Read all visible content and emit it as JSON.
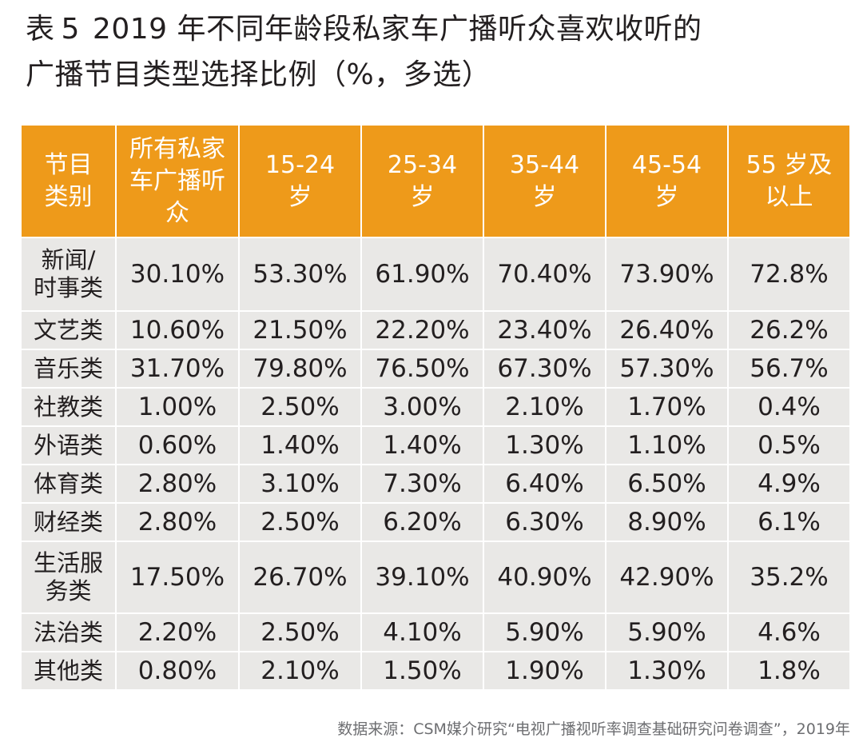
{
  "title": {
    "line1_a": "表",
    "line1_num": "5",
    "line1_b": "2019 年不同年龄段私家车广播听众喜欢收听的",
    "line2": "广播节目类型选择比例（%，多选）"
  },
  "table": {
    "headers": [
      [
        "节目",
        "类别"
      ],
      [
        "所有私家",
        "车广播听",
        "众"
      ],
      [
        "15-24",
        "岁"
      ],
      [
        "25-34",
        "岁"
      ],
      [
        "35-44",
        "岁"
      ],
      [
        "45-54",
        "岁"
      ],
      [
        "55 岁及",
        "以上"
      ]
    ],
    "rows": [
      {
        "category": [
          "新闻/",
          "时事类"
        ],
        "values": [
          "30.10%",
          "53.30%",
          "61.90%",
          "70.40%",
          "73.90%",
          "72.8%"
        ]
      },
      {
        "category": [
          "文艺类"
        ],
        "values": [
          "10.60%",
          "21.50%",
          "22.20%",
          "23.40%",
          "26.40%",
          "26.2%"
        ]
      },
      {
        "category": [
          "音乐类"
        ],
        "values": [
          "31.70%",
          "79.80%",
          "76.50%",
          "67.30%",
          "57.30%",
          "56.7%"
        ]
      },
      {
        "category": [
          "社教类"
        ],
        "values": [
          "1.00%",
          "2.50%",
          "3.00%",
          "2.10%",
          "1.70%",
          "0.4%"
        ]
      },
      {
        "category": [
          "外语类"
        ],
        "values": [
          "0.60%",
          "1.40%",
          "1.40%",
          "1.30%",
          "1.10%",
          "0.5%"
        ]
      },
      {
        "category": [
          "体育类"
        ],
        "values": [
          "2.80%",
          "3.10%",
          "7.30%",
          "6.40%",
          "6.50%",
          "4.9%"
        ]
      },
      {
        "category": [
          "财经类"
        ],
        "values": [
          "2.80%",
          "2.50%",
          "6.20%",
          "6.30%",
          "8.90%",
          "6.1%"
        ]
      },
      {
        "category": [
          "生活服",
          "务类"
        ],
        "values": [
          "17.50%",
          "26.70%",
          "39.10%",
          "40.90%",
          "42.90%",
          "35.2%"
        ]
      },
      {
        "category": [
          "法治类"
        ],
        "values": [
          "2.20%",
          "2.50%",
          "4.10%",
          "5.90%",
          "5.90%",
          "4.6%"
        ]
      },
      {
        "category": [
          "其他类"
        ],
        "values": [
          "0.80%",
          "2.10%",
          "1.50%",
          "1.90%",
          "1.30%",
          "1.8%"
        ]
      }
    ]
  },
  "source": "数据来源：CSM媒介研究“电视广播视听率调查基础研究问卷调查”，2019年",
  "colors": {
    "header_bg": "#ee9a1a",
    "header_text": "#ffffff",
    "cell_bg": "#e9e8e6",
    "text": "#231f20",
    "source_text": "#6d6e71"
  }
}
